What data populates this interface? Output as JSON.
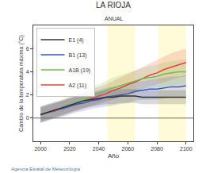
{
  "chart_data": {
    "type": "line",
    "title": "LA RIOJA",
    "subtitle": "ANUAL",
    "x_label": "Año",
    "y_label": "Cambio de la temperatura máxima (°C)",
    "footer": "Agencia Estatal de Meteorología",
    "x": [
      2000,
      2005,
      2010,
      2015,
      2020,
      2025,
      2030,
      2035,
      2040,
      2045,
      2050,
      2055,
      2060,
      2065,
      2070,
      2075,
      2080,
      2085,
      2090,
      2095,
      2100
    ],
    "series": [
      {
        "name": "A2 (11)",
        "color": "#e8403a",
        "values": [
          0.3,
          0.5,
          0.6,
          0.9,
          1.1,
          1.3,
          1.5,
          1.7,
          1.9,
          2.1,
          2.4,
          2.6,
          2.9,
          3.1,
          3.4,
          3.7,
          3.9,
          4.2,
          4.4,
          4.6,
          4.8
        ],
        "lower": [
          -0.4,
          -0.2,
          0.0,
          0.2,
          0.4,
          0.6,
          0.8,
          1.0,
          1.2,
          1.4,
          1.6,
          1.8,
          2.0,
          2.2,
          2.5,
          2.7,
          2.9,
          3.1,
          3.3,
          3.5,
          3.6
        ],
        "upper": [
          1.0,
          1.2,
          1.3,
          1.6,
          1.8,
          2.0,
          2.3,
          2.5,
          2.7,
          2.9,
          3.2,
          3.5,
          3.8,
          4.1,
          4.4,
          4.7,
          5.0,
          5.3,
          5.6,
          5.8,
          6.0
        ]
      },
      {
        "name": "A1B (19)",
        "color": "#6cbf4a",
        "values": [
          0.3,
          0.5,
          0.7,
          0.9,
          1.2,
          1.4,
          1.6,
          1.9,
          2.1,
          2.4,
          2.6,
          2.8,
          3.0,
          3.2,
          3.4,
          3.5,
          3.6,
          3.8,
          3.9,
          4.0,
          4.0
        ],
        "lower": [
          -0.4,
          -0.2,
          0.0,
          0.2,
          0.5,
          0.7,
          0.9,
          1.1,
          1.3,
          1.5,
          1.7,
          1.9,
          2.1,
          2.3,
          2.4,
          2.5,
          2.6,
          2.7,
          2.8,
          2.9,
          2.9
        ],
        "upper": [
          1.0,
          1.2,
          1.4,
          1.6,
          1.9,
          2.1,
          2.4,
          2.7,
          2.9,
          3.2,
          3.5,
          3.7,
          3.9,
          4.1,
          4.3,
          4.5,
          4.6,
          4.8,
          4.9,
          5.0,
          5.1
        ]
      },
      {
        "name": "B1 (13)",
        "color": "#3a55c8",
        "values": [
          0.3,
          0.5,
          0.7,
          0.8,
          1.0,
          1.2,
          1.3,
          1.5,
          1.6,
          1.8,
          1.9,
          2.0,
          2.1,
          2.3,
          2.4,
          2.5,
          2.5,
          2.6,
          2.7,
          2.7,
          2.8
        ],
        "lower": [
          -0.4,
          -0.2,
          0.0,
          0.1,
          0.3,
          0.5,
          0.6,
          0.8,
          0.9,
          1.0,
          1.1,
          1.2,
          1.3,
          1.5,
          1.6,
          1.6,
          1.6,
          1.7,
          1.8,
          1.8,
          1.9
        ],
        "upper": [
          1.0,
          1.2,
          1.4,
          1.5,
          1.7,
          1.9,
          2.0,
          2.2,
          2.4,
          2.6,
          2.7,
          2.8,
          2.9,
          3.1,
          3.2,
          3.3,
          3.4,
          3.5,
          3.6,
          3.6,
          3.7
        ]
      },
      {
        "name": "E1 (4)",
        "color": "#333333",
        "values": [
          0.3,
          0.5,
          0.7,
          0.9,
          1.1,
          1.3,
          1.5,
          1.6,
          1.7,
          1.8,
          1.8,
          1.9,
          1.9,
          1.9,
          1.8,
          1.8,
          1.8,
          1.8,
          1.8,
          1.8,
          1.8
        ],
        "lower": [
          -0.3,
          -0.1,
          0.1,
          0.3,
          0.5,
          0.7,
          0.9,
          1.0,
          1.1,
          1.2,
          1.2,
          1.3,
          1.3,
          1.3,
          1.2,
          1.2,
          1.2,
          1.2,
          1.2,
          1.2,
          1.2
        ],
        "upper": [
          0.9,
          1.1,
          1.3,
          1.5,
          1.7,
          1.9,
          2.1,
          2.2,
          2.3,
          2.4,
          2.4,
          2.5,
          2.5,
          2.5,
          2.4,
          2.4,
          2.4,
          2.4,
          2.4,
          2.4,
          2.4
        ]
      }
    ],
    "highlight_periods": [
      [
        2046,
        2065
      ],
      [
        2081,
        2100
      ]
    ],
    "xlim": [
      1995,
      2105
    ],
    "xticks": [
      2000,
      2020,
      2040,
      2060,
      2080,
      2100
    ],
    "ylim": [
      -2,
      8
    ],
    "yticks": [
      0,
      2,
      4,
      6
    ],
    "grid": false,
    "legend": "top left"
  }
}
